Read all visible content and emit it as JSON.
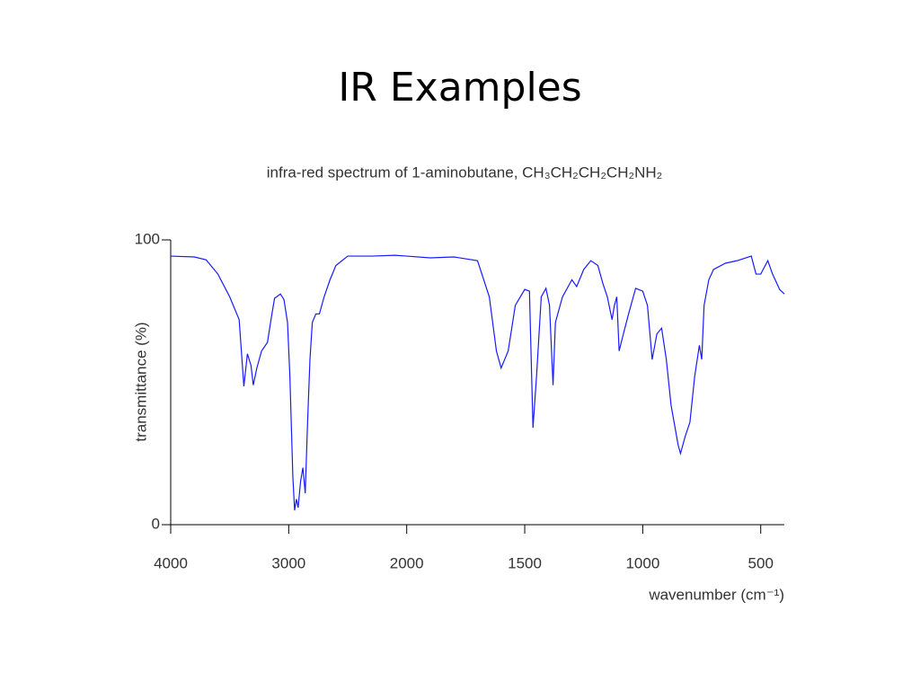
{
  "title": "IR Examples",
  "chart_data": {
    "type": "line",
    "subtitle": "infra-red spectrum of 1-aminobutane,  CH₃CH₂CH₂CH₂NH₂",
    "xlabel": "wavenumber (cm⁻¹)",
    "ylabel": "transmittance (%)",
    "x": [
      4000,
      3800,
      3700,
      3600,
      3500,
      3420,
      3380,
      3350,
      3320,
      3300,
      3270,
      3230,
      3180,
      3150,
      3120,
      3070,
      3040,
      3010,
      2990,
      2965,
      2950,
      2935,
      2920,
      2900,
      2880,
      2860,
      2840,
      2820,
      2800,
      2770,
      2740,
      2700,
      2650,
      2600,
      2500,
      2300,
      2100,
      2000,
      1900,
      1800,
      1700,
      1650,
      1620,
      1600,
      1570,
      1540,
      1500,
      1480,
      1465,
      1450,
      1430,
      1410,
      1395,
      1380,
      1370,
      1340,
      1300,
      1280,
      1250,
      1220,
      1190,
      1170,
      1150,
      1130,
      1120,
      1110,
      1100,
      1085,
      1060,
      1030,
      1000,
      980,
      960,
      940,
      920,
      900,
      880,
      850,
      840,
      820,
      800,
      780,
      760,
      750,
      740,
      720,
      700,
      650,
      600,
      540,
      520,
      500,
      470,
      450,
      420,
      400
    ],
    "series": [
      {
        "name": "1-aminobutane",
        "color": "#1a1aff",
        "values": [
          94.3,
          94,
          93,
          88,
          80,
          72,
          48.6,
          60,
          56,
          49,
          55,
          61,
          64,
          72,
          79.5,
          81,
          79,
          71,
          52,
          17,
          5,
          9,
          6,
          15,
          20,
          11,
          36,
          58,
          71,
          74,
          74,
          80,
          86,
          91,
          94.3,
          94.3,
          94.6,
          94.3,
          93.7,
          94,
          92.7,
          80,
          61,
          55,
          61,
          77,
          82.6,
          82,
          34,
          52,
          80,
          83,
          77,
          49,
          71,
          80,
          86,
          83.6,
          89.6,
          92.7,
          91,
          85,
          80,
          72,
          77,
          80,
          61,
          66,
          74,
          83,
          82,
          77,
          58,
          67,
          69,
          58,
          42,
          28,
          25,
          31,
          36,
          52,
          63,
          58,
          77,
          86,
          89.6,
          91.8,
          92.7,
          94.3,
          88,
          88,
          92.7,
          88,
          82.6,
          81
        ]
      }
    ],
    "xlim": [
      4000,
      400
    ],
    "xticks": [
      4000,
      3000,
      2000,
      1500,
      1000,
      500
    ],
    "ylim": [
      0,
      100
    ],
    "yticks": [
      0,
      100
    ]
  }
}
